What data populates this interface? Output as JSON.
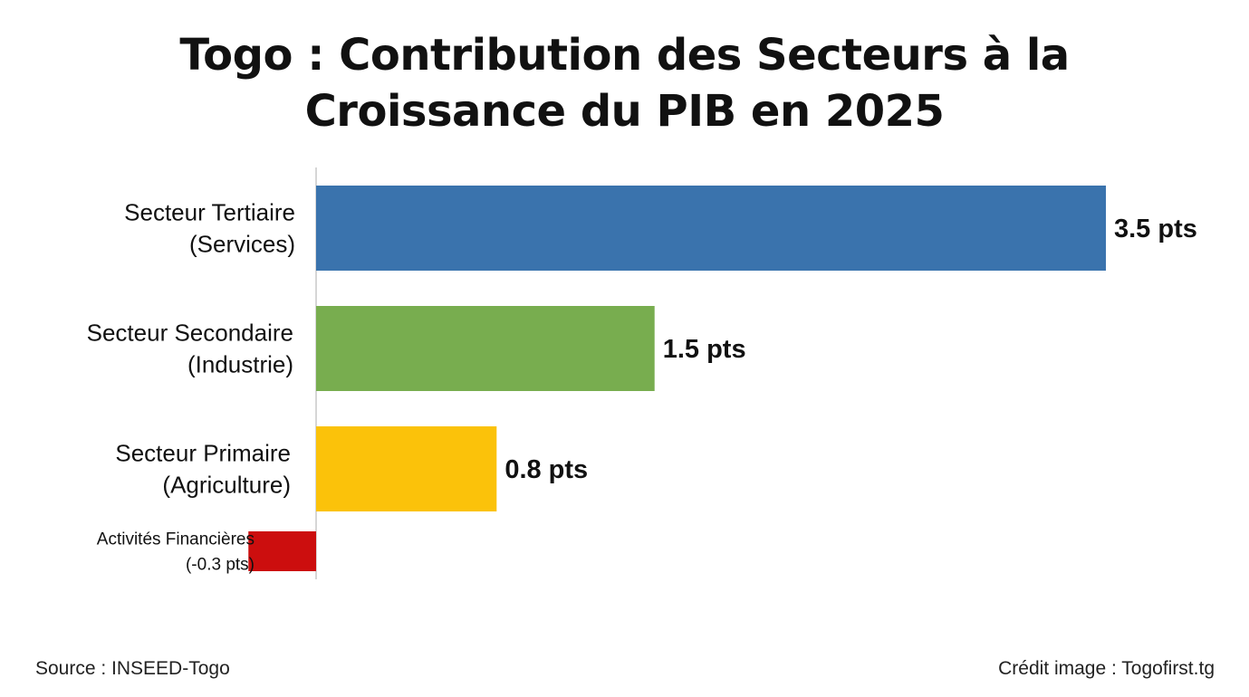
{
  "title_line1": "Togo : Contribution des Secteurs à la",
  "title_line2": "Croissance du PIB en 2025",
  "source": "Source : INSEED-Togo",
  "credit": "Crédit image : Togofirst.tg",
  "chart_data": {
    "type": "bar",
    "orientation": "horizontal",
    "grid": false,
    "categories": [
      [
        "Secteur Tertiaire",
        "(Services)"
      ],
      [
        "Secteur Secondaire",
        "(Industrie)"
      ],
      [
        "Secteur Primaire",
        "(Agriculture)"
      ],
      [
        "Activités Financières",
        "(-0.3 pts)"
      ]
    ],
    "values": [
      3.5,
      1.5,
      0.8,
      -0.3
    ],
    "value_labels": [
      "3.5 pts",
      "1.5 pts",
      "0.8 pts",
      ""
    ],
    "colors": [
      "#3a73ad",
      "#78ad4f",
      "#fbc20a",
      "#cc0e0e"
    ],
    "xlim": [
      -0.3,
      3.5
    ]
  }
}
